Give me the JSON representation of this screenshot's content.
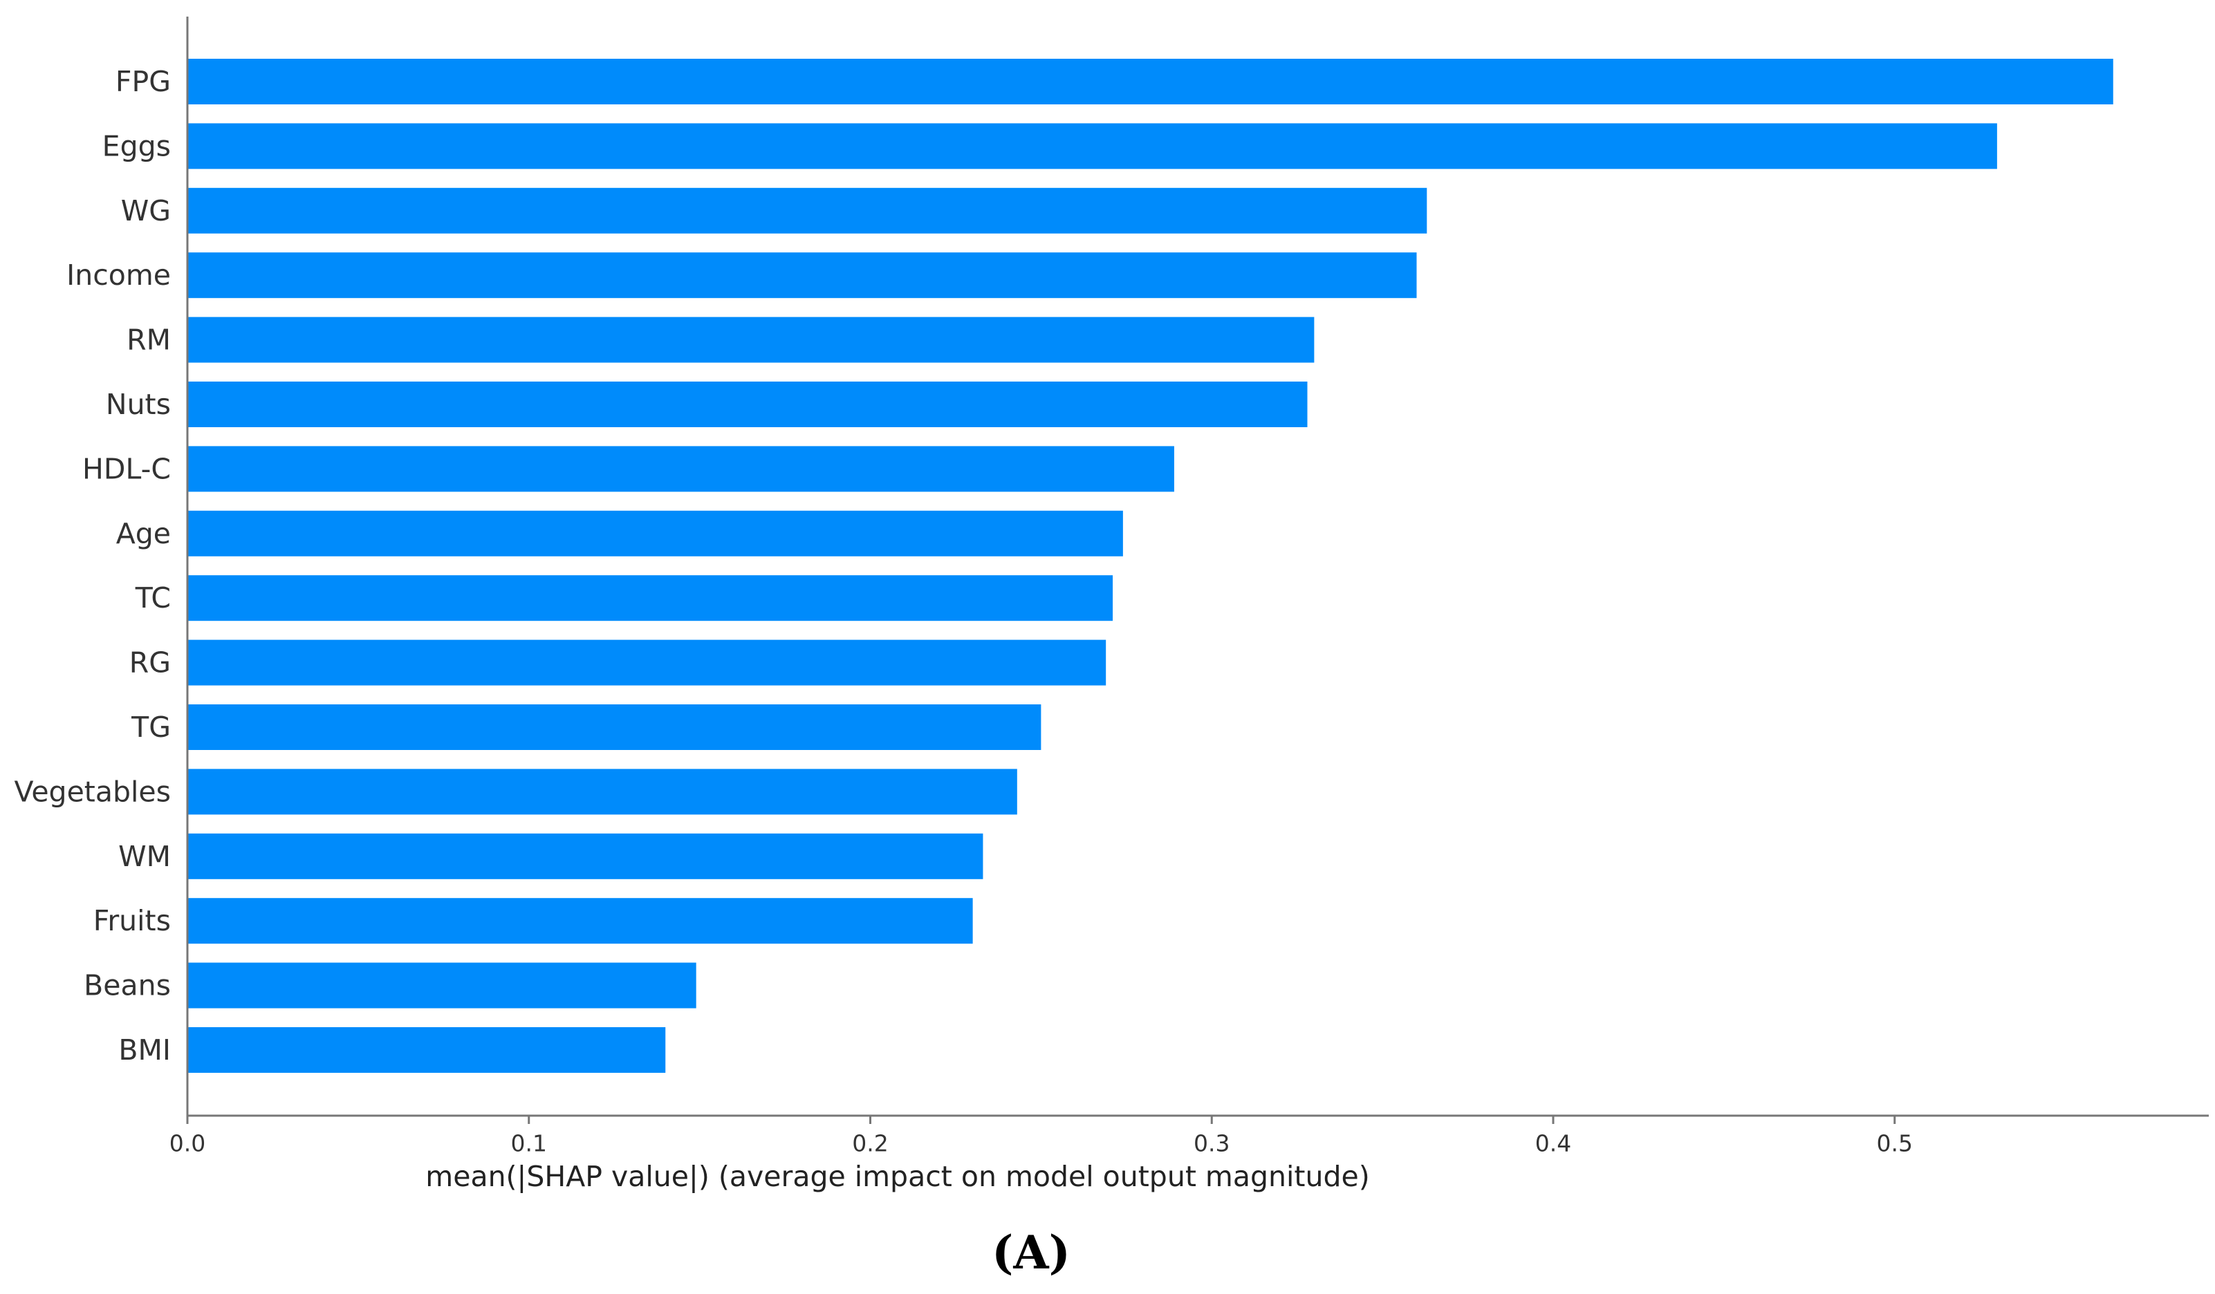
{
  "chart_data": {
    "type": "bar",
    "orientation": "horizontal",
    "categories": [
      "FPG",
      "Eggs",
      "WG",
      "Income",
      "RM",
      "Nuts",
      "HDL-C",
      "Age",
      "TC",
      "RG",
      "TG",
      "Vegetables",
      "WM",
      "Fruits",
      "Beans",
      "BMI"
    ],
    "values": [
      0.564,
      0.53,
      0.363,
      0.36,
      0.33,
      0.328,
      0.289,
      0.274,
      0.271,
      0.269,
      0.25,
      0.243,
      0.233,
      0.23,
      0.149,
      0.14
    ],
    "xlabel": "mean(|SHAP value|) (average impact on model output magnitude)",
    "ylabel": "",
    "xlim": [
      0,
      0.592
    ],
    "xticks": [
      0.0,
      0.1,
      0.2,
      0.3,
      0.4,
      0.5
    ],
    "xtick_labels": [
      "0.0",
      "0.1",
      "0.2",
      "0.3",
      "0.4",
      "0.5"
    ],
    "bar_color": "#008bfb",
    "grid": false,
    "legend": "none"
  },
  "panel_label": "(A)",
  "colors": {
    "axis": "#777777",
    "text": "#333333"
  }
}
